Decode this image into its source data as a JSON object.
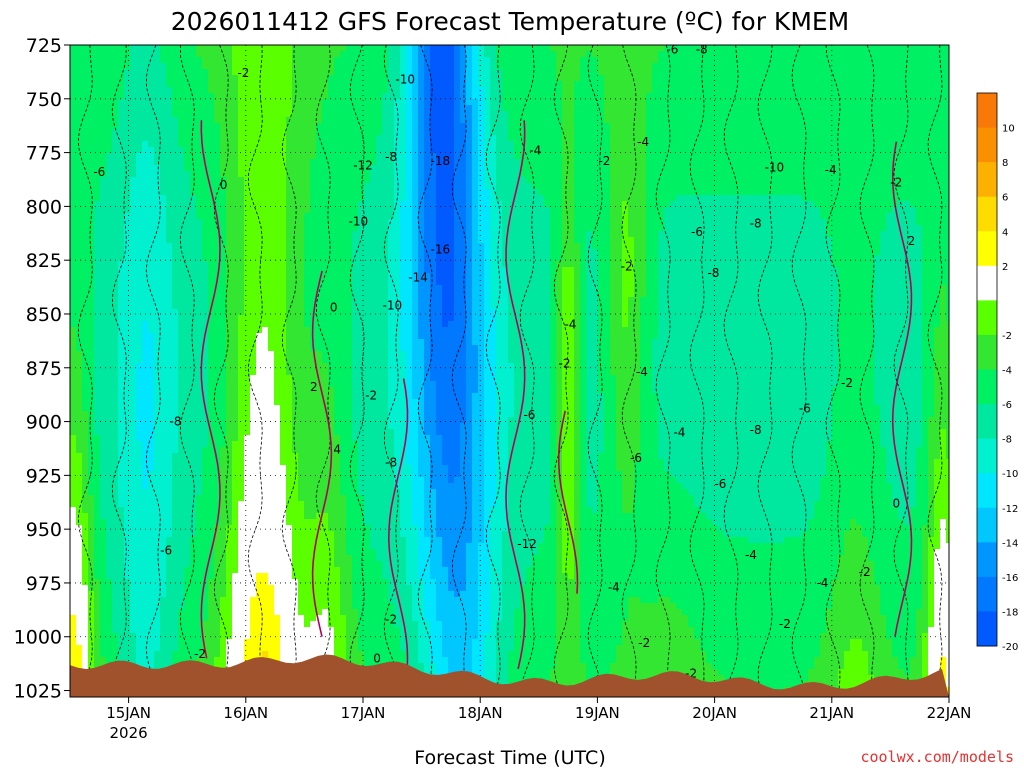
{
  "chart_data": {
    "type": "heatmap",
    "title": "2026011412 GFS Forecast Temperature (ºC) for KMEM",
    "xlabel": "Forecast Time (UTC)",
    "ylabel": "",
    "y_ticks": [
      725,
      750,
      775,
      800,
      825,
      850,
      875,
      900,
      925,
      950,
      975,
      1000,
      1025
    ],
    "ylim": [
      725,
      1028
    ],
    "x_ticks": [
      {
        "label": "15JAN",
        "sub": "2026",
        "day": 1
      },
      {
        "label": "16JAN",
        "sub": "",
        "day": 2
      },
      {
        "label": "17JAN",
        "sub": "",
        "day": 3
      },
      {
        "label": "18JAN",
        "sub": "",
        "day": 4
      },
      {
        "label": "19JAN",
        "sub": "",
        "day": 5
      },
      {
        "label": "20JAN",
        "sub": "",
        "day": 6
      },
      {
        "label": "21JAN",
        "sub": "",
        "day": 7
      },
      {
        "label": "22JAN",
        "sub": "",
        "day": 8
      }
    ],
    "xlim_days": [
      0.5,
      8
    ],
    "colorbar": {
      "unit": "ºC",
      "levels": [
        {
          "label": "10",
          "color": "#f87808"
        },
        {
          "label": "8",
          "color": "#fa9000"
        },
        {
          "label": "6",
          "color": "#fcb000"
        },
        {
          "label": "4",
          "color": "#ffdc00"
        },
        {
          "label": "2",
          "color": "#ffff00"
        },
        {
          "label": "",
          "color": "#ffffff"
        },
        {
          "label": "-2",
          "color": "#5aff00"
        },
        {
          "label": "-4",
          "color": "#32e632"
        },
        {
          "label": "-6",
          "color": "#00f064"
        },
        {
          "label": "-8",
          "color": "#00e8a0"
        },
        {
          "label": "-10",
          "color": "#00f0d0"
        },
        {
          "label": "-12",
          "color": "#00e6ff"
        },
        {
          "label": "-14",
          "color": "#00c8ff"
        },
        {
          "label": "-16",
          "color": "#0096ff"
        },
        {
          "label": "-18",
          "color": "#0078ff"
        },
        {
          "label": "-20",
          "color": "#005aff"
        }
      ]
    },
    "contour_labels": [
      {
        "text": "-6",
        "day": 0.75,
        "p": 784
      },
      {
        "text": "-2",
        "day": 1.98,
        "p": 738
      },
      {
        "text": "0",
        "day": 1.81,
        "p": 790
      },
      {
        "text": "-8",
        "day": 1.4,
        "p": 900
      },
      {
        "text": "-6",
        "day": 1.32,
        "p": 960
      },
      {
        "text": "-2",
        "day": 1.61,
        "p": 1008
      },
      {
        "text": "0",
        "day": 2.75,
        "p": 847
      },
      {
        "text": "2",
        "day": 2.58,
        "p": 884
      },
      {
        "text": "4",
        "day": 2.78,
        "p": 913
      },
      {
        "text": "-2",
        "day": 3.07,
        "p": 888
      },
      {
        "text": "-12",
        "day": 3.0,
        "p": 781
      },
      {
        "text": "-10",
        "day": 2.96,
        "p": 807
      },
      {
        "text": "-8",
        "day": 3.24,
        "p": 777
      },
      {
        "text": "-10",
        "day": 3.36,
        "p": 741
      },
      {
        "text": "-18",
        "day": 3.66,
        "p": 779
      },
      {
        "text": "-16",
        "day": 3.66,
        "p": 820
      },
      {
        "text": "-14",
        "day": 3.47,
        "p": 833
      },
      {
        "text": "-10",
        "day": 3.25,
        "p": 846
      },
      {
        "text": "-8",
        "day": 3.24,
        "p": 919
      },
      {
        "text": "-2",
        "day": 3.24,
        "p": 992
      },
      {
        "text": "0",
        "day": 3.12,
        "p": 1010
      },
      {
        "text": "-12",
        "day": 4.4,
        "p": 957
      },
      {
        "text": "-6",
        "day": 4.42,
        "p": 897
      },
      {
        "text": "-4",
        "day": 4.47,
        "p": 774
      },
      {
        "text": "-4",
        "day": 4.77,
        "p": 855
      },
      {
        "text": "-2",
        "day": 4.72,
        "p": 873
      },
      {
        "text": "-2",
        "day": 5.25,
        "p": 828
      },
      {
        "text": "-2",
        "day": 5.06,
        "p": 779
      },
      {
        "text": "-4",
        "day": 5.39,
        "p": 770
      },
      {
        "text": "-6",
        "day": 5.64,
        "p": 727
      },
      {
        "text": "-8",
        "day": 5.89,
        "p": 727
      },
      {
        "text": "-10",
        "day": 6.51,
        "p": 782
      },
      {
        "text": "-4",
        "day": 6.99,
        "p": 783
      },
      {
        "text": "-6",
        "day": 5.85,
        "p": 812
      },
      {
        "text": "-8",
        "day": 6.35,
        "p": 808
      },
      {
        "text": "-8",
        "day": 5.99,
        "p": 831
      },
      {
        "text": "-2",
        "day": 7.55,
        "p": 789
      },
      {
        "text": "2",
        "day": 7.68,
        "p": 816
      },
      {
        "text": "-4",
        "day": 5.38,
        "p": 877
      },
      {
        "text": "-6",
        "day": 5.33,
        "p": 917
      },
      {
        "text": "-4",
        "day": 5.7,
        "p": 905
      },
      {
        "text": "-6",
        "day": 6.05,
        "p": 929
      },
      {
        "text": "-8",
        "day": 6.35,
        "p": 904
      },
      {
        "text": "-6",
        "day": 6.77,
        "p": 894
      },
      {
        "text": "-2",
        "day": 7.13,
        "p": 882
      },
      {
        "text": "0",
        "day": 7.55,
        "p": 938
      },
      {
        "text": "-4",
        "day": 6.31,
        "p": 962
      },
      {
        "text": "-4",
        "day": 5.14,
        "p": 977
      },
      {
        "text": "-4",
        "day": 6.92,
        "p": 975
      },
      {
        "text": "-2",
        "day": 7.28,
        "p": 970
      },
      {
        "text": "-2",
        "day": 6.6,
        "p": 994
      },
      {
        "text": "-2",
        "day": 5.4,
        "p": 1003
      },
      {
        "text": "-2",
        "day": 5.8,
        "p": 1017
      }
    ]
  },
  "footer": {
    "xlabel": "Forecast Time (UTC)",
    "credit": "coolwx.com/models"
  },
  "colors": {
    "ground": "#a0522d",
    "zero_line": "#b4005a",
    "credit": "#e83030"
  }
}
